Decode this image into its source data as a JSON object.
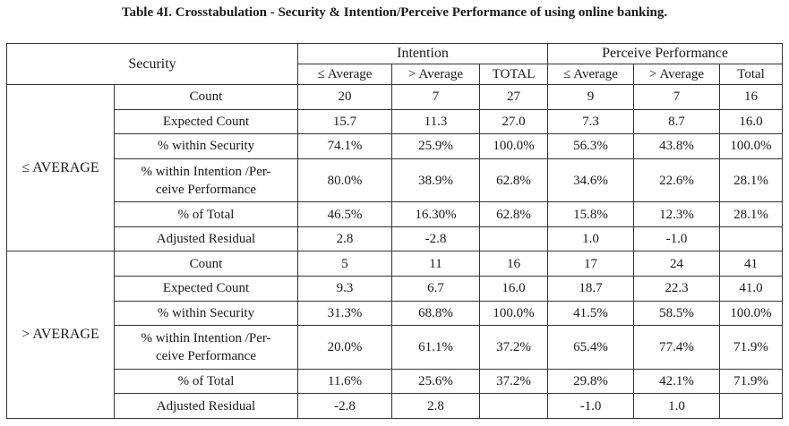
{
  "title": "Table 4I. Crosstabulation - Security & Intention/Perceive Performance of using online banking.",
  "header": {
    "security": "Security",
    "groups": [
      "Intention",
      "Perceive Performance"
    ],
    "columns": [
      "≤ Average",
      "> Average",
      "TOTAL",
      "≤ Average",
      "> Average",
      "Total"
    ]
  },
  "blocks": [
    {
      "label": "≤ AVERAGE",
      "rows": [
        {
          "stat": "Count",
          "values": [
            "20",
            "7",
            "27",
            "9",
            "7",
            "16"
          ]
        },
        {
          "stat": "Expected Count",
          "values": [
            "15.7",
            "11.3",
            "27.0",
            "7.3",
            "8.7",
            "16.0"
          ]
        },
        {
          "stat": "% within Security",
          "values": [
            "74.1%",
            "25.9%",
            "100.0%",
            "56.3%",
            "43.8%",
            "100.0%"
          ]
        },
        {
          "stat": "% within Intention /Per-\nceive Performance",
          "values": [
            "80.0%",
            "38.9%",
            "62.8%",
            "34.6%",
            "22.6%",
            "28.1%"
          ]
        },
        {
          "stat": "% of Total",
          "values": [
            "46.5%",
            "16.30%",
            "62.8%",
            "15.8%",
            "12.3%",
            "28.1%"
          ]
        },
        {
          "stat": "Adjusted Residual",
          "values": [
            "2.8",
            "-2.8",
            "",
            "1.0",
            "-1.0",
            ""
          ]
        }
      ]
    },
    {
      "label": "> AVERAGE",
      "rows": [
        {
          "stat": "Count",
          "values": [
            "5",
            "11",
            "16",
            "17",
            "24",
            "41"
          ]
        },
        {
          "stat": "Expected Count",
          "values": [
            "9.3",
            "6.7",
            "16.0",
            "18.7",
            "22.3",
            "41.0"
          ]
        },
        {
          "stat": "% within Security",
          "values": [
            "31.3%",
            "68.8%",
            "100.0%",
            "41.5%",
            "58.5%",
            "100.0%"
          ]
        },
        {
          "stat": "% within Intention /Per-\nceive Performance",
          "values": [
            "20.0%",
            "61.1%",
            "37.2%",
            "65.4%",
            "77.4%",
            "71.9%"
          ]
        },
        {
          "stat": "% of Total",
          "values": [
            "11.6%",
            "25.6%",
            "37.2%",
            "29.8%",
            "42.1%",
            "71.9%"
          ]
        },
        {
          "stat": "Adjusted Residual",
          "values": [
            "-2.8",
            "2.8",
            "",
            "-1.0",
            "1.0",
            ""
          ]
        }
      ]
    }
  ]
}
